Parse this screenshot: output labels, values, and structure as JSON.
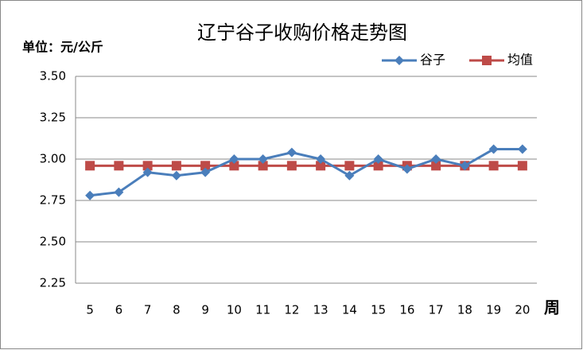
{
  "chart_data": {
    "type": "line",
    "title": "辽宁谷子收购价格走势图",
    "y_label": "单位：元/公斤",
    "x_label": "周",
    "categories": [
      "5",
      "6",
      "7",
      "8",
      "9",
      "10",
      "11",
      "12",
      "13",
      "14",
      "15",
      "16",
      "17",
      "18",
      "19",
      "20"
    ],
    "series": [
      {
        "name": "谷子",
        "color": "#4a7ebb",
        "marker": "diamond",
        "values": [
          2.78,
          2.8,
          2.92,
          2.9,
          2.92,
          3.0,
          3.0,
          3.04,
          3.0,
          2.9,
          3.0,
          2.94,
          3.0,
          2.96,
          3.06,
          3.06
        ]
      },
      {
        "name": "均值",
        "color": "#be4b48",
        "marker": "square",
        "values": [
          2.96,
          2.96,
          2.96,
          2.96,
          2.96,
          2.96,
          2.96,
          2.96,
          2.96,
          2.96,
          2.96,
          2.96,
          2.96,
          2.96,
          2.96,
          2.96
        ]
      }
    ],
    "ylim": [
      2.25,
      3.5
    ],
    "yticks": [
      2.25,
      {
        "value": 2.5,
        "label": "2.50"
      },
      2.75,
      {
        "value": 3.0,
        "label": "3.00"
      },
      3.25,
      {
        "value": 3.5,
        "label": "3.50"
      }
    ],
    "grid": true,
    "legend": "top-right"
  }
}
